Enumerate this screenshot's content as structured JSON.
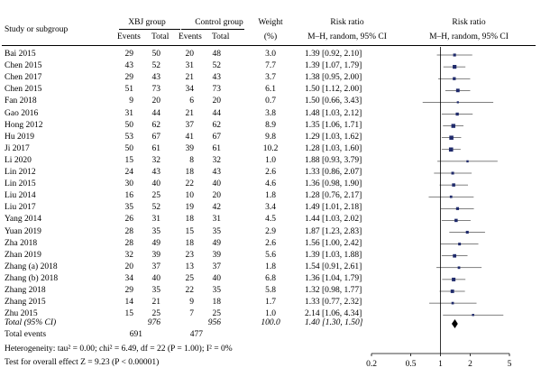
{
  "headers": {
    "study": "Study or subgroup",
    "group1": "XBJ group",
    "group2": "Control group",
    "weight": "Weight",
    "weight_unit": "(%)",
    "rr": "Risk ratio",
    "rr_method": "M–H, random, 95% CI",
    "plot_title": "Risk ratio",
    "plot_method": "M–H, random, 95% CI",
    "events": "Events",
    "total": "Total"
  },
  "rows": [
    {
      "study": "Bai 2015",
      "e1": "29",
      "n1": "50",
      "e2": "20",
      "n2": "48",
      "w": "3.0",
      "ci": "1.39 [0.92, 2.10]"
    },
    {
      "study": "Chen 2015",
      "e1": "43",
      "n1": "52",
      "e2": "31",
      "n2": "52",
      "w": "7.7",
      "ci": "1.39 [1.07, 1.79]"
    },
    {
      "study": "Chen 2017",
      "e1": "29",
      "n1": "43",
      "e2": "21",
      "n2": "43",
      "w": "3.7",
      "ci": "1.38 [0.95, 2.00]"
    },
    {
      "study": "Chen 2015",
      "e1": "51",
      "n1": "73",
      "e2": "34",
      "n2": "73",
      "w": "6.1",
      "ci": "1.50 [1.12, 2.00]"
    },
    {
      "study": "Fan 2018",
      "e1": "9",
      "n1": "20",
      "e2": "6",
      "n2": "20",
      "w": "0.7",
      "ci": "1.50 [0.66, 3.43]"
    },
    {
      "study": "Gao 2016",
      "e1": "31",
      "n1": "44",
      "e2": "21",
      "n2": "44",
      "w": "3.8",
      "ci": "1.48 [1.03, 2.12]"
    },
    {
      "study": "Hong 2012",
      "e1": "50",
      "n1": "62",
      "e2": "37",
      "n2": "62",
      "w": "8.9",
      "ci": "1.35 [1.06, 1.71]"
    },
    {
      "study": "Hu 2019",
      "e1": "53",
      "n1": "67",
      "e2": "41",
      "n2": "67",
      "w": "9.8",
      "ci": "1.29 [1.03, 1.62]"
    },
    {
      "study": "Ji 2017",
      "e1": "50",
      "n1": "61",
      "e2": "39",
      "n2": "61",
      "w": "10.2",
      "ci": "1.28 [1.03, 1.60]"
    },
    {
      "study": "Li 2020",
      "e1": "15",
      "n1": "32",
      "e2": "8",
      "n2": "32",
      "w": "1.0",
      "ci": "1.88 [0.93, 3.79]"
    },
    {
      "study": "Lin 2012",
      "e1": "24",
      "n1": "43",
      "e2": "18",
      "n2": "43",
      "w": "2.6",
      "ci": "1.33 [0.86, 2.07]"
    },
    {
      "study": "Lin 2015",
      "e1": "30",
      "n1": "40",
      "e2": "22",
      "n2": "40",
      "w": "4.6",
      "ci": "1.36 [0.98, 1.90]"
    },
    {
      "study": "Liu 2014",
      "e1": "16",
      "n1": "25",
      "e2": "10",
      "n2": "20",
      "w": "1.8",
      "ci": "1.28 [0.76, 2.17]"
    },
    {
      "study": "Liu 2017",
      "e1": "35",
      "n1": "52",
      "e2": "19",
      "n2": "42",
      "w": "3.4",
      "ci": "1.49 [1.01, 2.18]"
    },
    {
      "study": "Yang 2014",
      "e1": "26",
      "n1": "31",
      "e2": "18",
      "n2": "31",
      "w": "4.5",
      "ci": "1.44 [1.03, 2.02]"
    },
    {
      "study": "Yuan 2019",
      "e1": "28",
      "n1": "35",
      "e2": "15",
      "n2": "35",
      "w": "2.9",
      "ci": "1.87 [1.23, 2.83]"
    },
    {
      "study": "Zha 2018",
      "e1": "28",
      "n1": "49",
      "e2": "18",
      "n2": "49",
      "w": "2.6",
      "ci": "1.56 [1.00, 2.42]"
    },
    {
      "study": "Zhan 2019",
      "e1": "32",
      "n1": "39",
      "e2": "23",
      "n2": "39",
      "w": "5.6",
      "ci": "1.39 [1.03, 1.88]"
    },
    {
      "study": "Zhang (a) 2018",
      "e1": "20",
      "n1": "37",
      "e2": "13",
      "n2": "37",
      "w": "1.8",
      "ci": "1.54 [0.91, 2.61]"
    },
    {
      "study": "Zhang (b) 2018",
      "e1": "34",
      "n1": "40",
      "e2": "25",
      "n2": "40",
      "w": "6.8",
      "ci": "1.36 [1.04, 1.79]"
    },
    {
      "study": "Zhang 2018",
      "e1": "29",
      "n1": "35",
      "e2": "22",
      "n2": "35",
      "w": "5.8",
      "ci": "1.32 [0.98, 1.77]"
    },
    {
      "study": "Zhang 2015",
      "e1": "14",
      "n1": "21",
      "e2": "9",
      "n2": "18",
      "w": "1.7",
      "ci": "1.33 [0.77, 2.32]"
    },
    {
      "study": "Zhu 2015",
      "e1": "15",
      "n1": "25",
      "e2": "7",
      "n2": "25",
      "w": "1.0",
      "ci": "2.14 [1.06, 4.34]"
    }
  ],
  "total": {
    "label": "Total (95% CI)",
    "n1": "976",
    "n2": "956",
    "w": "100.0",
    "ci": "1.40 [1.30, 1.50]"
  },
  "total_events": {
    "label": "Total events",
    "e1": "691",
    "e2": "477"
  },
  "heterogeneity": "Heterogeneity: tau² = 0.00; chi² = 6.49, df = 22 (P = 1.00); I² = 0%",
  "overall_test": "Test for overall effect Z = 9.23 (P < 0.00001)",
  "chart_data": {
    "type": "scatter",
    "scale": "log",
    "xlim": [
      0.2,
      5
    ],
    "xticks": [
      0.2,
      0.5,
      1,
      2,
      5
    ],
    "xtick_labels": [
      "0.2",
      "0.5",
      "1",
      "2",
      "5"
    ],
    "reference_line": 1,
    "colors": {
      "marker": "#1f2a6b",
      "line": "#000000",
      "diamond": "#000000"
    },
    "points": [
      {
        "rr": 1.39,
        "lo": 0.92,
        "hi": 2.1,
        "w": 3.0
      },
      {
        "rr": 1.39,
        "lo": 1.07,
        "hi": 1.79,
        "w": 7.7
      },
      {
        "rr": 1.38,
        "lo": 0.95,
        "hi": 2.0,
        "w": 3.7
      },
      {
        "rr": 1.5,
        "lo": 1.12,
        "hi": 2.0,
        "w": 6.1
      },
      {
        "rr": 1.5,
        "lo": 0.66,
        "hi": 3.43,
        "w": 0.7
      },
      {
        "rr": 1.48,
        "lo": 1.03,
        "hi": 2.12,
        "w": 3.8
      },
      {
        "rr": 1.35,
        "lo": 1.06,
        "hi": 1.71,
        "w": 8.9
      },
      {
        "rr": 1.29,
        "lo": 1.03,
        "hi": 1.62,
        "w": 9.8
      },
      {
        "rr": 1.28,
        "lo": 1.03,
        "hi": 1.6,
        "w": 10.2
      },
      {
        "rr": 1.88,
        "lo": 0.93,
        "hi": 3.79,
        "w": 1.0
      },
      {
        "rr": 1.33,
        "lo": 0.86,
        "hi": 2.07,
        "w": 2.6
      },
      {
        "rr": 1.36,
        "lo": 0.98,
        "hi": 1.9,
        "w": 4.6
      },
      {
        "rr": 1.28,
        "lo": 0.76,
        "hi": 2.17,
        "w": 1.8
      },
      {
        "rr": 1.49,
        "lo": 1.01,
        "hi": 2.18,
        "w": 3.4
      },
      {
        "rr": 1.44,
        "lo": 1.03,
        "hi": 2.02,
        "w": 4.5
      },
      {
        "rr": 1.87,
        "lo": 1.23,
        "hi": 2.83,
        "w": 2.9
      },
      {
        "rr": 1.56,
        "lo": 1.0,
        "hi": 2.42,
        "w": 2.6
      },
      {
        "rr": 1.39,
        "lo": 1.03,
        "hi": 1.88,
        "w": 5.6
      },
      {
        "rr": 1.54,
        "lo": 0.91,
        "hi": 2.61,
        "w": 1.8
      },
      {
        "rr": 1.36,
        "lo": 1.04,
        "hi": 1.79,
        "w": 6.8
      },
      {
        "rr": 1.32,
        "lo": 0.98,
        "hi": 1.77,
        "w": 5.8
      },
      {
        "rr": 1.33,
        "lo": 0.77,
        "hi": 2.32,
        "w": 1.7
      },
      {
        "rr": 2.14,
        "lo": 1.06,
        "hi": 4.34,
        "w": 1.0
      }
    ],
    "pooled": {
      "rr": 1.4,
      "lo": 1.3,
      "hi": 1.5
    }
  }
}
